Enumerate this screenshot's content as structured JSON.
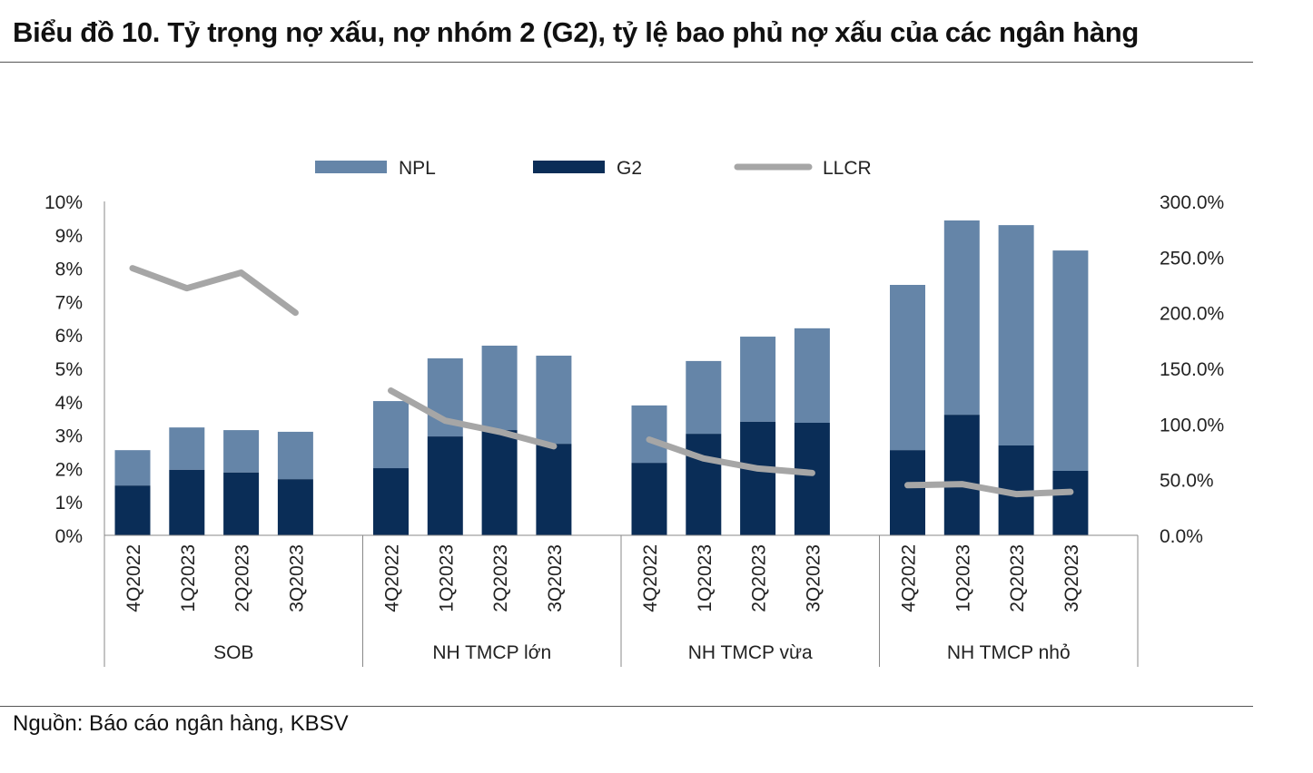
{
  "title": "Biểu đồ 10. Tỷ trọng nợ xấu, nợ nhóm 2 (G2), tỷ lệ bao phủ nợ xấu của các ngân hàng",
  "source": "Nguồn: Báo cáo ngân hàng, KBSV",
  "chart_data": {
    "type": "bar",
    "stacked": true,
    "groups": [
      "SOB",
      "NH TMCP lớn",
      "NH TMCP vừa",
      "NH TMCP nhỏ"
    ],
    "categories": [
      "4Q2022",
      "1Q2023",
      "2Q2023",
      "3Q2023"
    ],
    "legend": [
      "NPL",
      "G2",
      "LLCR"
    ],
    "legend_position": "top",
    "colors": {
      "NPL": "#6585a8",
      "G2": "#0a2d57",
      "LLCR": "#a6a6a6"
    },
    "left_axis": {
      "ylim": [
        0,
        10
      ],
      "ticks": [
        "0%",
        "1%",
        "2%",
        "3%",
        "4%",
        "5%",
        "6%",
        "7%",
        "8%",
        "9%",
        "10%"
      ]
    },
    "right_axis": {
      "ylim": [
        0,
        300
      ],
      "ticks": [
        "0.0%",
        "50.0%",
        "100.0%",
        "150.0%",
        "200.0%",
        "250.0%",
        "300.0%"
      ]
    },
    "series": [
      {
        "name": "G2",
        "axis": "left",
        "values": [
          [
            1.49,
            1.96,
            1.88,
            1.68
          ],
          [
            2.01,
            2.96,
            3.15,
            2.74
          ],
          [
            2.17,
            3.04,
            3.4,
            3.37
          ],
          [
            2.55,
            3.61,
            2.69,
            1.93
          ]
        ]
      },
      {
        "name": "NPL",
        "axis": "left",
        "values": [
          [
            1.06,
            1.27,
            1.27,
            1.42
          ],
          [
            2.01,
            2.34,
            2.53,
            2.64
          ],
          [
            1.72,
            2.18,
            2.55,
            2.83
          ],
          [
            4.95,
            5.82,
            6.6,
            6.6
          ]
        ]
      },
      {
        "name": "LLCR",
        "axis": "right",
        "type": "line",
        "values": [
          [
            240,
            222,
            236,
            200
          ],
          [
            130,
            103,
            93,
            80
          ],
          [
            86,
            69,
            60,
            56
          ],
          [
            45,
            46,
            37,
            39
          ]
        ]
      }
    ]
  }
}
